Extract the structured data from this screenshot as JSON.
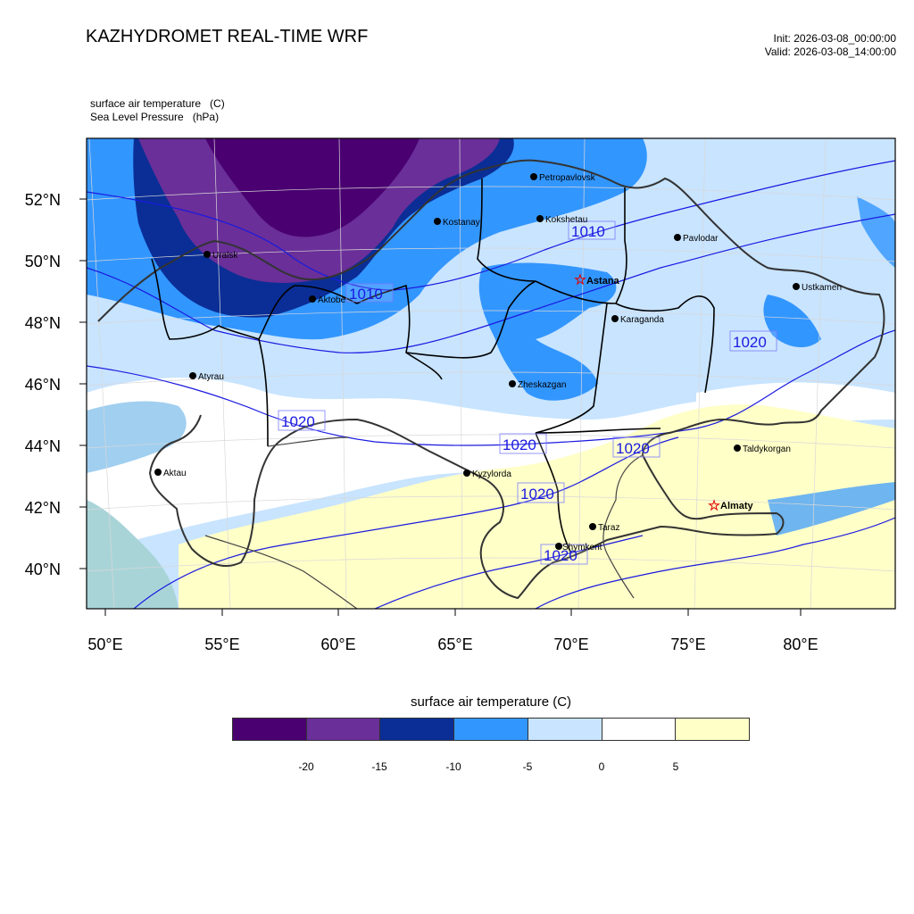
{
  "header": {
    "title": "KAZHYDROMET REAL-TIME WRF",
    "init": "Init: 2026-03-08_00:00:00",
    "valid": "Valid: 2026-03-08_14:00:00"
  },
  "variables": {
    "line1": "surface air temperature   (C)",
    "line2": "Sea Level Pressure   (hPa)"
  },
  "axes": {
    "lon_labels": [
      "50°E",
      "55°E",
      "60°E",
      "65°E",
      "70°E",
      "75°E",
      "80°E"
    ],
    "lat_labels": [
      "40°N",
      "42°N",
      "44°N",
      "46°N",
      "48°N",
      "50°N",
      "52°N"
    ]
  },
  "cities": [
    {
      "name": "Petropavlovsk",
      "capital": false
    },
    {
      "name": "Kostanay",
      "capital": false
    },
    {
      "name": "Kokshetau",
      "capital": false
    },
    {
      "name": "Pavlodar",
      "capital": false
    },
    {
      "name": "Uralsk",
      "capital": false
    },
    {
      "name": "Aktobe",
      "capital": false
    },
    {
      "name": "Astana",
      "capital": true
    },
    {
      "name": "Ustkamen",
      "capital": false
    },
    {
      "name": "Karaganda",
      "capital": false
    },
    {
      "name": "Atyrau",
      "capital": false
    },
    {
      "name": "Zheskazgan",
      "capital": false
    },
    {
      "name": "Taldykorgan",
      "capital": false
    },
    {
      "name": "Aktau",
      "capital": false
    },
    {
      "name": "Kyzylorda",
      "capital": false
    },
    {
      "name": "Almaty",
      "capital": true
    },
    {
      "name": "Taraz",
      "capital": false
    },
    {
      "name": "Shymkent",
      "capital": false
    }
  ],
  "isobar_labels": [
    "1010",
    "1010",
    "1020",
    "1020",
    "1020",
    "1020",
    "1020",
    "1020"
  ],
  "colorbar": {
    "title": "surface air temperature (C)",
    "colors": [
      "#4a0070",
      "#6a2f98",
      "#0a2e96",
      "#3296ff",
      "#c8e4ff",
      "#ffffff",
      "#ffffc8"
    ],
    "labels": [
      "-20",
      "-15",
      "-10",
      "-5",
      "0",
      "5"
    ]
  }
}
